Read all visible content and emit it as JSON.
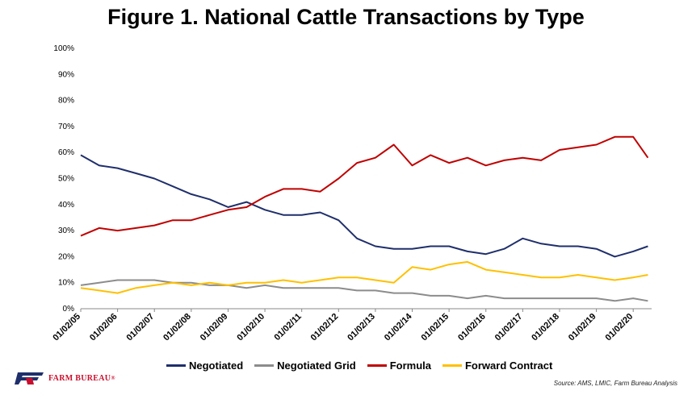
{
  "title": "Figure 1. National Cattle Transactions by Type",
  "source": "Source: AMS, LMIC, Farm Bureau Analysis",
  "logo_text": "FARM BUREAU",
  "logo_reg": "®",
  "chart_data": {
    "type": "line",
    "title": "Figure 1. National Cattle Transactions by Type",
    "x_tick_labels": [
      "01/02/05",
      "01/02/06",
      "01/02/07",
      "01/02/08",
      "01/02/09",
      "01/02/10",
      "01/02/11",
      "01/02/12",
      "01/02/13",
      "01/02/14",
      "01/02/15",
      "01/02/16",
      "01/02/17",
      "01/02/18",
      "01/02/19",
      "01/02/20"
    ],
    "x_range": [
      2005.0,
      2020.5
    ],
    "y_ticks": [
      "0%",
      "10%",
      "20%",
      "30%",
      "40%",
      "50%",
      "60%",
      "70%",
      "80%",
      "90%",
      "100%"
    ],
    "ylim": [
      0,
      100
    ],
    "grid": false,
    "legend_position": "bottom",
    "series": [
      {
        "name": "Negotiated",
        "color": "#1f2f6b",
        "x": [
          2005.0,
          2005.5,
          2006.0,
          2006.5,
          2007.0,
          2007.5,
          2008.0,
          2008.5,
          2009.0,
          2009.5,
          2010.0,
          2010.5,
          2011.0,
          2011.5,
          2012.0,
          2012.5,
          2013.0,
          2013.5,
          2014.0,
          2014.5,
          2015.0,
          2015.5,
          2016.0,
          2016.5,
          2017.0,
          2017.5,
          2018.0,
          2018.5,
          2019.0,
          2019.5,
          2020.0,
          2020.4
        ],
        "y": [
          59,
          55,
          54,
          52,
          50,
          47,
          44,
          42,
          39,
          41,
          38,
          36,
          36,
          37,
          34,
          27,
          24,
          23,
          23,
          24,
          24,
          22,
          21,
          23,
          27,
          25,
          24,
          24,
          23,
          20,
          22,
          24
        ]
      },
      {
        "name": "Negotiated Grid",
        "color": "#8c8c8c",
        "x": [
          2005.0,
          2005.5,
          2006.0,
          2006.5,
          2007.0,
          2007.5,
          2008.0,
          2008.5,
          2009.0,
          2009.5,
          2010.0,
          2010.5,
          2011.0,
          2011.5,
          2012.0,
          2012.5,
          2013.0,
          2013.5,
          2014.0,
          2014.5,
          2015.0,
          2015.5,
          2016.0,
          2016.5,
          2017.0,
          2017.5,
          2018.0,
          2018.5,
          2019.0,
          2019.5,
          2020.0,
          2020.4
        ],
        "y": [
          9,
          10,
          11,
          11,
          11,
          10,
          10,
          9,
          9,
          8,
          9,
          8,
          8,
          8,
          8,
          7,
          7,
          6,
          6,
          5,
          5,
          4,
          5,
          4,
          4,
          4,
          4,
          4,
          4,
          3,
          4,
          3
        ]
      },
      {
        "name": "Formula",
        "color": "#c00000",
        "x": [
          2005.0,
          2005.5,
          2006.0,
          2006.5,
          2007.0,
          2007.5,
          2008.0,
          2008.5,
          2009.0,
          2009.5,
          2010.0,
          2010.5,
          2011.0,
          2011.5,
          2012.0,
          2012.5,
          2013.0,
          2013.5,
          2014.0,
          2014.5,
          2015.0,
          2015.5,
          2016.0,
          2016.5,
          2017.0,
          2017.5,
          2018.0,
          2018.5,
          2019.0,
          2019.5,
          2020.0,
          2020.4
        ],
        "y": [
          28,
          31,
          30,
          31,
          32,
          34,
          34,
          36,
          38,
          39,
          43,
          46,
          46,
          45,
          50,
          56,
          58,
          63,
          55,
          59,
          56,
          58,
          55,
          57,
          58,
          57,
          61,
          62,
          63,
          66,
          66,
          58
        ]
      },
      {
        "name": "Forward Contract",
        "color": "#ffc000",
        "x": [
          2005.0,
          2005.5,
          2006.0,
          2006.5,
          2007.0,
          2007.5,
          2008.0,
          2008.5,
          2009.0,
          2009.5,
          2010.0,
          2010.5,
          2011.0,
          2011.5,
          2012.0,
          2012.5,
          2013.0,
          2013.5,
          2014.0,
          2014.5,
          2015.0,
          2015.5,
          2016.0,
          2016.5,
          2017.0,
          2017.5,
          2018.0,
          2018.5,
          2019.0,
          2019.5,
          2020.0,
          2020.4
        ],
        "y": [
          8,
          7,
          6,
          8,
          9,
          10,
          9,
          10,
          9,
          10,
          10,
          11,
          10,
          11,
          12,
          12,
          11,
          10,
          16,
          15,
          17,
          18,
          15,
          14,
          13,
          12,
          12,
          13,
          12,
          11,
          12,
          13
        ]
      }
    ]
  }
}
